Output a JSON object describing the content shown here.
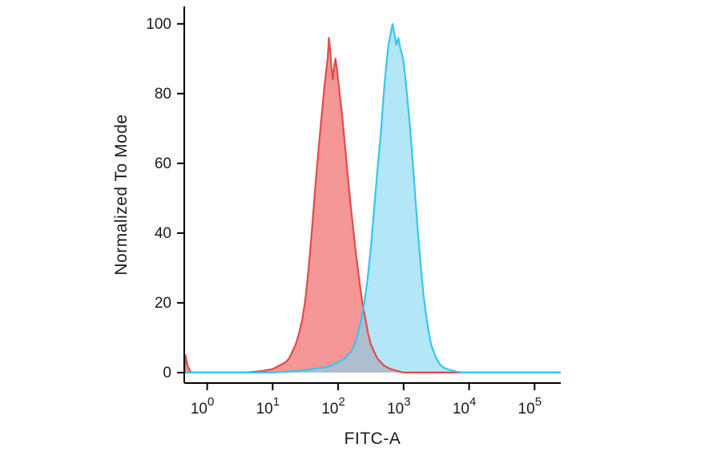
{
  "chart_data": {
    "type": "area",
    "subtype": "flow-cytometry-histogram",
    "title": "",
    "xlabel": "FITC-A",
    "ylabel": "Normalized To Mode",
    "x_scale": "log10",
    "xlim_log10": [
      -0.35,
      5.4
    ],
    "ylim": [
      -3,
      105
    ],
    "x_tick_base": "10",
    "x_tick_exponents": [
      "0",
      "1",
      "2",
      "3",
      "4",
      "5"
    ],
    "y_ticks": [
      "0",
      "20",
      "40",
      "60",
      "80",
      "100"
    ],
    "grid": false,
    "legend": null,
    "axis_color": "#000000",
    "series": [
      {
        "name": "red-peak",
        "stroke": "#e14b4a",
        "fill": "rgba(239,106,104,0.70)",
        "points_log10x_y": [
          [
            -0.35,
            0
          ],
          [
            -0.33,
            5
          ],
          [
            -0.3,
            2
          ],
          [
            -0.25,
            0
          ],
          [
            0.2,
            0
          ],
          [
            0.6,
            0
          ],
          [
            0.85,
            0.5
          ],
          [
            1.0,
            1
          ],
          [
            1.1,
            2
          ],
          [
            1.2,
            3
          ],
          [
            1.25,
            4
          ],
          [
            1.3,
            6
          ],
          [
            1.35,
            8
          ],
          [
            1.4,
            11
          ],
          [
            1.45,
            15
          ],
          [
            1.5,
            21
          ],
          [
            1.55,
            30
          ],
          [
            1.6,
            41
          ],
          [
            1.65,
            53
          ],
          [
            1.7,
            64
          ],
          [
            1.73,
            70
          ],
          [
            1.76,
            76
          ],
          [
            1.79,
            82
          ],
          [
            1.82,
            87
          ],
          [
            1.84,
            90
          ],
          [
            1.86,
            96
          ],
          [
            1.88,
            92
          ],
          [
            1.9,
            87
          ],
          [
            1.92,
            84
          ],
          [
            1.94,
            88
          ],
          [
            1.96,
            90
          ],
          [
            1.98,
            87
          ],
          [
            2.0,
            84
          ],
          [
            2.03,
            79
          ],
          [
            2.06,
            74
          ],
          [
            2.09,
            68
          ],
          [
            2.12,
            62
          ],
          [
            2.15,
            56
          ],
          [
            2.18,
            50
          ],
          [
            2.22,
            43
          ],
          [
            2.26,
            36
          ],
          [
            2.3,
            30
          ],
          [
            2.34,
            24
          ],
          [
            2.38,
            19
          ],
          [
            2.42,
            15
          ],
          [
            2.46,
            11
          ],
          [
            2.5,
            8
          ],
          [
            2.55,
            6
          ],
          [
            2.6,
            4
          ],
          [
            2.65,
            3
          ],
          [
            2.7,
            2
          ],
          [
            2.8,
            1
          ],
          [
            2.9,
            0.5
          ],
          [
            3.0,
            0
          ],
          [
            5.4,
            0
          ]
        ]
      },
      {
        "name": "cyan-peak",
        "stroke": "#33c6f0",
        "fill": "rgba(132,214,240,0.62)",
        "points_log10x_y": [
          [
            -0.35,
            0
          ],
          [
            0.5,
            0
          ],
          [
            1.0,
            0
          ],
          [
            1.4,
            0.5
          ],
          [
            1.6,
            1
          ],
          [
            1.8,
            1.5
          ],
          [
            1.9,
            2
          ],
          [
            2.0,
            3
          ],
          [
            2.1,
            4
          ],
          [
            2.2,
            6
          ],
          [
            2.25,
            8
          ],
          [
            2.3,
            11
          ],
          [
            2.35,
            15
          ],
          [
            2.4,
            20
          ],
          [
            2.45,
            27
          ],
          [
            2.5,
            36
          ],
          [
            2.55,
            47
          ],
          [
            2.6,
            58
          ],
          [
            2.65,
            68
          ],
          [
            2.68,
            76
          ],
          [
            2.71,
            83
          ],
          [
            2.74,
            89
          ],
          [
            2.77,
            94
          ],
          [
            2.8,
            97
          ],
          [
            2.83,
            100
          ],
          [
            2.86,
            97
          ],
          [
            2.89,
            94
          ],
          [
            2.92,
            96
          ],
          [
            2.95,
            93
          ],
          [
            2.98,
            91
          ],
          [
            3.0,
            89
          ],
          [
            3.03,
            84
          ],
          [
            3.06,
            78
          ],
          [
            3.1,
            70
          ],
          [
            3.14,
            60
          ],
          [
            3.18,
            50
          ],
          [
            3.22,
            40
          ],
          [
            3.26,
            31
          ],
          [
            3.3,
            23
          ],
          [
            3.34,
            17
          ],
          [
            3.38,
            12
          ],
          [
            3.42,
            8
          ],
          [
            3.46,
            6
          ],
          [
            3.5,
            4
          ],
          [
            3.55,
            2.5
          ],
          [
            3.6,
            1.5
          ],
          [
            3.7,
            0.8
          ],
          [
            3.8,
            0.3
          ],
          [
            3.9,
            0
          ],
          [
            5.4,
            0
          ]
        ]
      }
    ]
  }
}
